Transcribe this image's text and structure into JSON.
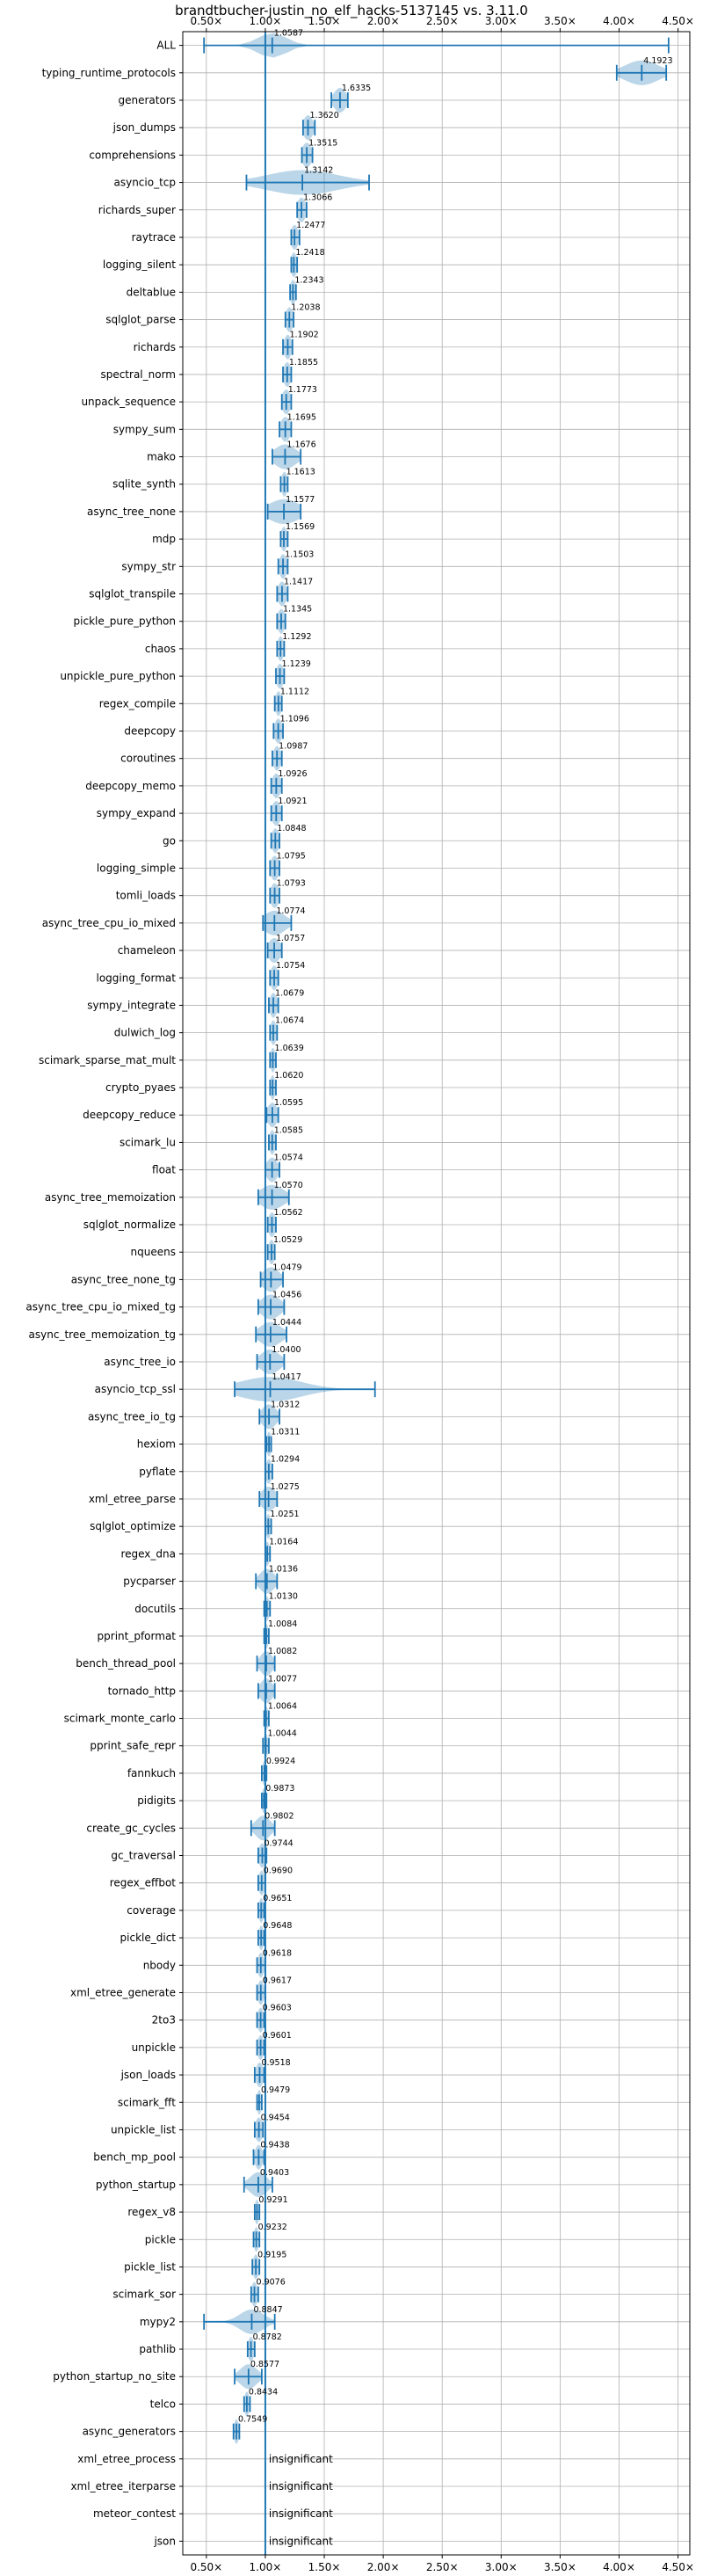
{
  "chart_data": {
    "type": "violin",
    "title": "brandtbucher-justin_no_elf_hacks-5137145 vs. 3.11.0",
    "xlabel": "",
    "ylabel": "",
    "xlim": [
      0.3,
      4.6
    ],
    "xticks": [
      0.5,
      1.0,
      1.5,
      2.0,
      2.5,
      3.0,
      3.5,
      4.0,
      4.5
    ],
    "xtick_labels": [
      "0.50×",
      "1.00×",
      "1.50×",
      "2.00×",
      "2.50×",
      "3.00×",
      "3.50×",
      "4.00×",
      "4.50×"
    ],
    "reference_line": 1.0,
    "grid": true,
    "insignificant_text": "insignificant",
    "benchmarks": [
      {
        "name": "ALL",
        "label": "1.0587",
        "value": 1.0587,
        "min": 0.48,
        "max": 4.42,
        "spread": 0.12
      },
      {
        "name": "typing_runtime_protocols",
        "label": "4.1923",
        "value": 4.1923,
        "min": 3.98,
        "max": 4.4,
        "spread": 0.14
      },
      {
        "name": "generators",
        "label": "1.6335",
        "value": 1.6335,
        "min": 1.56,
        "max": 1.7,
        "spread": 0.05
      },
      {
        "name": "json_dumps",
        "label": "1.3620",
        "value": 1.362,
        "min": 1.32,
        "max": 1.42,
        "spread": 0.04
      },
      {
        "name": "comprehensions",
        "label": "1.3515",
        "value": 1.3515,
        "min": 1.31,
        "max": 1.4,
        "spread": 0.04
      },
      {
        "name": "asyncio_tcp",
        "label": "1.3142",
        "value": 1.3142,
        "min": 0.84,
        "max": 1.88,
        "spread": 0.3
      },
      {
        "name": "richards_super",
        "label": "1.3066",
        "value": 1.3066,
        "min": 1.27,
        "max": 1.35,
        "spread": 0.035
      },
      {
        "name": "raytrace",
        "label": "1.2477",
        "value": 1.2477,
        "min": 1.22,
        "max": 1.29,
        "spread": 0.03
      },
      {
        "name": "logging_silent",
        "label": "1.2418",
        "value": 1.2418,
        "min": 1.22,
        "max": 1.27,
        "spread": 0.025
      },
      {
        "name": "deltablue",
        "label": "1.2343",
        "value": 1.2343,
        "min": 1.21,
        "max": 1.26,
        "spread": 0.025
      },
      {
        "name": "sqlglot_parse",
        "label": "1.2038",
        "value": 1.2038,
        "min": 1.17,
        "max": 1.24,
        "spread": 0.03
      },
      {
        "name": "richards",
        "label": "1.1902",
        "value": 1.1902,
        "min": 1.15,
        "max": 1.23,
        "spread": 0.03
      },
      {
        "name": "spectral_norm",
        "label": "1.1855",
        "value": 1.1855,
        "min": 1.15,
        "max": 1.22,
        "spread": 0.03
      },
      {
        "name": "unpack_sequence",
        "label": "1.1773",
        "value": 1.1773,
        "min": 1.14,
        "max": 1.22,
        "spread": 0.035
      },
      {
        "name": "sympy_sum",
        "label": "1.1695",
        "value": 1.1695,
        "min": 1.12,
        "max": 1.22,
        "spread": 0.04
      },
      {
        "name": "mako",
        "label": "1.1676",
        "value": 1.1676,
        "min": 1.06,
        "max": 1.3,
        "spread": 0.09
      },
      {
        "name": "sqlite_synth",
        "label": "1.1613",
        "value": 1.1613,
        "min": 1.13,
        "max": 1.19,
        "spread": 0.025
      },
      {
        "name": "async_tree_none",
        "label": "1.1577",
        "value": 1.1577,
        "min": 1.02,
        "max": 1.3,
        "spread": 0.13
      },
      {
        "name": "mdp",
        "label": "1.1569",
        "value": 1.1569,
        "min": 1.13,
        "max": 1.19,
        "spread": 0.025
      },
      {
        "name": "sympy_str",
        "label": "1.1503",
        "value": 1.1503,
        "min": 1.11,
        "max": 1.19,
        "spread": 0.03
      },
      {
        "name": "sqlglot_transpile",
        "label": "1.1417",
        "value": 1.1417,
        "min": 1.1,
        "max": 1.19,
        "spread": 0.035
      },
      {
        "name": "pickle_pure_python",
        "label": "1.1345",
        "value": 1.1345,
        "min": 1.1,
        "max": 1.17,
        "spread": 0.03
      },
      {
        "name": "chaos",
        "label": "1.1292",
        "value": 1.1292,
        "min": 1.1,
        "max": 1.16,
        "spread": 0.025
      },
      {
        "name": "unpickle_pure_python",
        "label": "1.1239",
        "value": 1.1239,
        "min": 1.09,
        "max": 1.16,
        "spread": 0.03
      },
      {
        "name": "regex_compile",
        "label": "1.1112",
        "value": 1.1112,
        "min": 1.08,
        "max": 1.14,
        "spread": 0.025
      },
      {
        "name": "deepcopy",
        "label": "1.1096",
        "value": 1.1096,
        "min": 1.07,
        "max": 1.15,
        "spread": 0.03
      },
      {
        "name": "coroutines",
        "label": "1.0987",
        "value": 1.0987,
        "min": 1.06,
        "max": 1.14,
        "spread": 0.03
      },
      {
        "name": "deepcopy_memo",
        "label": "1.0926",
        "value": 1.0926,
        "min": 1.05,
        "max": 1.14,
        "spread": 0.035
      },
      {
        "name": "sympy_expand",
        "label": "1.0921",
        "value": 1.0921,
        "min": 1.05,
        "max": 1.14,
        "spread": 0.035
      },
      {
        "name": "go",
        "label": "1.0848",
        "value": 1.0848,
        "min": 1.05,
        "max": 1.12,
        "spread": 0.03
      },
      {
        "name": "logging_simple",
        "label": "1.0795",
        "value": 1.0795,
        "min": 1.04,
        "max": 1.12,
        "spread": 0.035
      },
      {
        "name": "tomli_loads",
        "label": "1.0793",
        "value": 1.0793,
        "min": 1.04,
        "max": 1.12,
        "spread": 0.035
      },
      {
        "name": "async_tree_cpu_io_mixed",
        "label": "1.0774",
        "value": 1.0774,
        "min": 0.98,
        "max": 1.22,
        "spread": 0.09
      },
      {
        "name": "chameleon",
        "label": "1.0757",
        "value": 1.0757,
        "min": 1.02,
        "max": 1.14,
        "spread": 0.05
      },
      {
        "name": "logging_format",
        "label": "1.0754",
        "value": 1.0754,
        "min": 1.04,
        "max": 1.11,
        "spread": 0.03
      },
      {
        "name": "sympy_integrate",
        "label": "1.0679",
        "value": 1.0679,
        "min": 1.03,
        "max": 1.11,
        "spread": 0.03
      },
      {
        "name": "dulwich_log",
        "label": "1.0674",
        "value": 1.0674,
        "min": 1.04,
        "max": 1.1,
        "spread": 0.025
      },
      {
        "name": "scimark_sparse_mat_mult",
        "label": "1.0639",
        "value": 1.0639,
        "min": 1.04,
        "max": 1.09,
        "spread": 0.02
      },
      {
        "name": "crypto_pyaes",
        "label": "1.0620",
        "value": 1.062,
        "min": 1.04,
        "max": 1.09,
        "spread": 0.02
      },
      {
        "name": "deepcopy_reduce",
        "label": "1.0595",
        "value": 1.0595,
        "min": 1.01,
        "max": 1.11,
        "spread": 0.04
      },
      {
        "name": "scimark_lu",
        "label": "1.0585",
        "value": 1.0585,
        "min": 1.03,
        "max": 1.09,
        "spread": 0.025
      },
      {
        "name": "float",
        "label": "1.0574",
        "value": 1.0574,
        "min": 1.0,
        "max": 1.12,
        "spread": 0.045
      },
      {
        "name": "async_tree_memoization",
        "label": "1.0570",
        "value": 1.057,
        "min": 0.94,
        "max": 1.2,
        "spread": 0.1
      },
      {
        "name": "sqlglot_normalize",
        "label": "1.0562",
        "value": 1.0562,
        "min": 1.02,
        "max": 1.09,
        "spread": 0.03
      },
      {
        "name": "nqueens",
        "label": "1.0529",
        "value": 1.0529,
        "min": 1.02,
        "max": 1.08,
        "spread": 0.025
      },
      {
        "name": "async_tree_none_tg",
        "label": "1.0479",
        "value": 1.0479,
        "min": 0.96,
        "max": 1.15,
        "spread": 0.07
      },
      {
        "name": "async_tree_cpu_io_mixed_tg",
        "label": "1.0456",
        "value": 1.0456,
        "min": 0.94,
        "max": 1.16,
        "spread": 0.08
      },
      {
        "name": "async_tree_memoization_tg",
        "label": "1.0444",
        "value": 1.0444,
        "min": 0.92,
        "max": 1.18,
        "spread": 0.09
      },
      {
        "name": "async_tree_io",
        "label": "1.0400",
        "value": 1.04,
        "min": 0.93,
        "max": 1.16,
        "spread": 0.08
      },
      {
        "name": "asyncio_tcp_ssl",
        "label": "1.0417",
        "value": 1.0417,
        "min": 0.74,
        "max": 1.93,
        "spread": 0.26
      },
      {
        "name": "async_tree_io_tg",
        "label": "1.0312",
        "value": 1.0312,
        "min": 0.95,
        "max": 1.12,
        "spread": 0.06
      },
      {
        "name": "hexiom",
        "label": "1.0311",
        "value": 1.0311,
        "min": 1.01,
        "max": 1.05,
        "spread": 0.02
      },
      {
        "name": "pyflate",
        "label": "1.0294",
        "value": 1.0294,
        "min": 1.0,
        "max": 1.06,
        "spread": 0.025
      },
      {
        "name": "xml_etree_parse",
        "label": "1.0275",
        "value": 1.0275,
        "min": 0.95,
        "max": 1.1,
        "spread": 0.06
      },
      {
        "name": "sqlglot_optimize",
        "label": "1.0251",
        "value": 1.0251,
        "min": 1.0,
        "max": 1.05,
        "spread": 0.02
      },
      {
        "name": "regex_dna",
        "label": "1.0164",
        "value": 1.0164,
        "min": 1.0,
        "max": 1.04,
        "spread": 0.018
      },
      {
        "name": "pycparser",
        "label": "1.0136",
        "value": 1.0136,
        "min": 0.92,
        "max": 1.1,
        "spread": 0.06
      },
      {
        "name": "docutils",
        "label": "1.0130",
        "value": 1.013,
        "min": 0.99,
        "max": 1.04,
        "spread": 0.02
      },
      {
        "name": "pprint_pformat",
        "label": "1.0084",
        "value": 1.0084,
        "min": 0.99,
        "max": 1.03,
        "spread": 0.018
      },
      {
        "name": "bench_thread_pool",
        "label": "1.0082",
        "value": 1.0082,
        "min": 0.93,
        "max": 1.08,
        "spread": 0.05
      },
      {
        "name": "tornado_http",
        "label": "1.0077",
        "value": 1.0077,
        "min": 0.94,
        "max": 1.08,
        "spread": 0.05
      },
      {
        "name": "scimark_monte_carlo",
        "label": "1.0064",
        "value": 1.0064,
        "min": 0.99,
        "max": 1.03,
        "spread": 0.018
      },
      {
        "name": "pprint_safe_repr",
        "label": "1.0044",
        "value": 1.0044,
        "min": 0.98,
        "max": 1.03,
        "spread": 0.018
      },
      {
        "name": "fannkuch",
        "label": "0.9924",
        "value": 0.9924,
        "min": 0.97,
        "max": 1.01,
        "spread": 0.018
      },
      {
        "name": "pidigits",
        "label": "0.9873",
        "value": 0.9873,
        "min": 0.97,
        "max": 1.01,
        "spread": 0.018
      },
      {
        "name": "create_gc_cycles",
        "label": "0.9802",
        "value": 0.9802,
        "min": 0.88,
        "max": 1.08,
        "spread": 0.06
      },
      {
        "name": "gc_traversal",
        "label": "0.9744",
        "value": 0.9744,
        "min": 0.94,
        "max": 1.01,
        "spread": 0.03
      },
      {
        "name": "regex_effbot",
        "label": "0.9690",
        "value": 0.969,
        "min": 0.94,
        "max": 1.0,
        "spread": 0.025
      },
      {
        "name": "coverage",
        "label": "0.9651",
        "value": 0.9651,
        "min": 0.94,
        "max": 0.99,
        "spread": 0.02
      },
      {
        "name": "pickle_dict",
        "label": "0.9648",
        "value": 0.9648,
        "min": 0.94,
        "max": 0.99,
        "spread": 0.02
      },
      {
        "name": "nbody",
        "label": "0.9618",
        "value": 0.9618,
        "min": 0.93,
        "max": 1.0,
        "spread": 0.025
      },
      {
        "name": "xml_etree_generate",
        "label": "0.9617",
        "value": 0.9617,
        "min": 0.93,
        "max": 1.0,
        "spread": 0.025
      },
      {
        "name": "2to3",
        "label": "0.9603",
        "value": 0.9603,
        "min": 0.93,
        "max": 0.99,
        "spread": 0.025
      },
      {
        "name": "unpickle",
        "label": "0.9601",
        "value": 0.9601,
        "min": 0.93,
        "max": 0.99,
        "spread": 0.025
      },
      {
        "name": "json_loads",
        "label": "0.9518",
        "value": 0.9518,
        "min": 0.91,
        "max": 0.99,
        "spread": 0.03
      },
      {
        "name": "scimark_fft",
        "label": "0.9479",
        "value": 0.9479,
        "min": 0.93,
        "max": 0.97,
        "spread": 0.018
      },
      {
        "name": "unpickle_list",
        "label": "0.9454",
        "value": 0.9454,
        "min": 0.91,
        "max": 0.98,
        "spread": 0.03
      },
      {
        "name": "bench_mp_pool",
        "label": "0.9438",
        "value": 0.9438,
        "min": 0.9,
        "max": 0.99,
        "spread": 0.03
      },
      {
        "name": "python_startup",
        "label": "0.9403",
        "value": 0.9403,
        "min": 0.82,
        "max": 1.06,
        "spread": 0.07
      },
      {
        "name": "regex_v8",
        "label": "0.9291",
        "value": 0.9291,
        "min": 0.91,
        "max": 0.95,
        "spread": 0.018
      },
      {
        "name": "pickle",
        "label": "0.9232",
        "value": 0.9232,
        "min": 0.9,
        "max": 0.95,
        "spread": 0.02
      },
      {
        "name": "pickle_list",
        "label": "0.9195",
        "value": 0.9195,
        "min": 0.89,
        "max": 0.95,
        "spread": 0.025
      },
      {
        "name": "scimark_sor",
        "label": "0.9076",
        "value": 0.9076,
        "min": 0.88,
        "max": 0.94,
        "spread": 0.025
      },
      {
        "name": "mypy2",
        "label": "0.8847",
        "value": 0.8847,
        "min": 0.48,
        "max": 1.08,
        "spread": 0.1
      },
      {
        "name": "pathlib",
        "label": "0.8782",
        "value": 0.8782,
        "min": 0.85,
        "max": 0.91,
        "spread": 0.025
      },
      {
        "name": "python_startup_no_site",
        "label": "0.8577",
        "value": 0.8577,
        "min": 0.74,
        "max": 0.97,
        "spread": 0.07
      },
      {
        "name": "telco",
        "label": "0.8434",
        "value": 0.8434,
        "min": 0.82,
        "max": 0.87,
        "spread": 0.02
      },
      {
        "name": "async_generators",
        "label": "0.7549",
        "value": 0.7549,
        "min": 0.73,
        "max": 0.78,
        "spread": 0.02
      },
      {
        "name": "xml_etree_process",
        "label": "insignificant",
        "value": null
      },
      {
        "name": "xml_etree_iterparse",
        "label": "insignificant",
        "value": null
      },
      {
        "name": "meteor_contest",
        "label": "insignificant",
        "value": null
      },
      {
        "name": "json",
        "label": "insignificant",
        "value": null
      }
    ]
  }
}
